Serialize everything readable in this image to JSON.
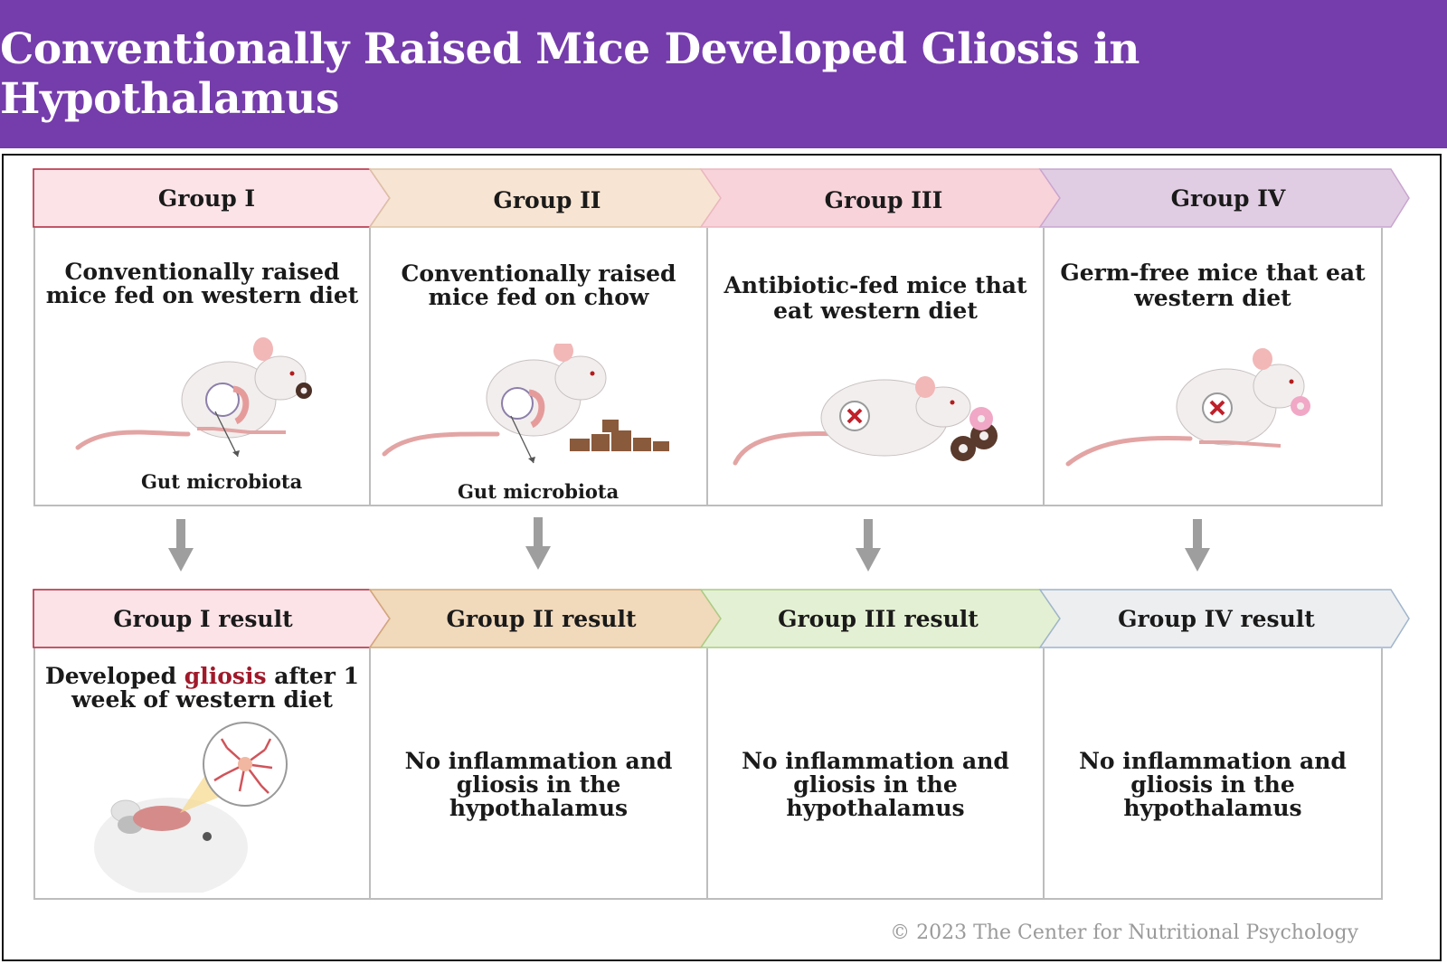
{
  "title": "Conventionally Raised Mice Developed Gliosis in Hypothalamus",
  "colors": {
    "banner": "#753cab",
    "group_1": "#fbe3e8",
    "group_2": "#f8e4d2",
    "group_3": "#f8d3da",
    "group_4": "#e1cde3",
    "result_1": "#fbe3e8",
    "result_2": "#f1d9bb",
    "result_3": "#e4f0d3",
    "result_4": "#eceef0",
    "highlight": "#a0192a"
  },
  "groups": [
    {
      "label": "Group I",
      "description_line1": "Conventionally raised",
      "description_line2": "mice fed on western diet",
      "caption": "Gut microbiota",
      "icon": "mouse-eating-donut-with-microbiota-icon"
    },
    {
      "label": "Group II",
      "description_line1": "Conventionally raised",
      "description_line2": "mice fed on chow",
      "caption": "Gut microbiota",
      "icon": "mouse-eating-chow-with-microbiota-icon"
    },
    {
      "label": "Group III",
      "description_line1": "Antibiotic-fed mice that",
      "description_line2": "eat western diet",
      "caption": "",
      "icon": "mouse-no-microbiota-donut-icon"
    },
    {
      "label": "Group IV",
      "description_line1": "Germ-free mice that eat",
      "description_line2": "western diet",
      "caption": "",
      "icon": "germ-free-mouse-donut-icon"
    }
  ],
  "results": [
    {
      "label": "Group I result",
      "text_pre": "Developed ",
      "text_highlight": "gliosis",
      "text_post": " after 1",
      "text_line2": "week of western diet",
      "icon": "mouse-brain-gliosis-icon"
    },
    {
      "label": "Group II result",
      "text_line1": "No inflammation and",
      "text_line2": "gliosis in the hypothalamus"
    },
    {
      "label": "Group III result",
      "text_line1": "No inflammation and",
      "text_line2": "gliosis in the hypothalamus"
    },
    {
      "label": "Group IV result",
      "text_line1": "No inflammation and",
      "text_line2": "gliosis in the hypothalamus"
    }
  ],
  "copyright": "© 2023 The Center for Nutritional Psychology"
}
